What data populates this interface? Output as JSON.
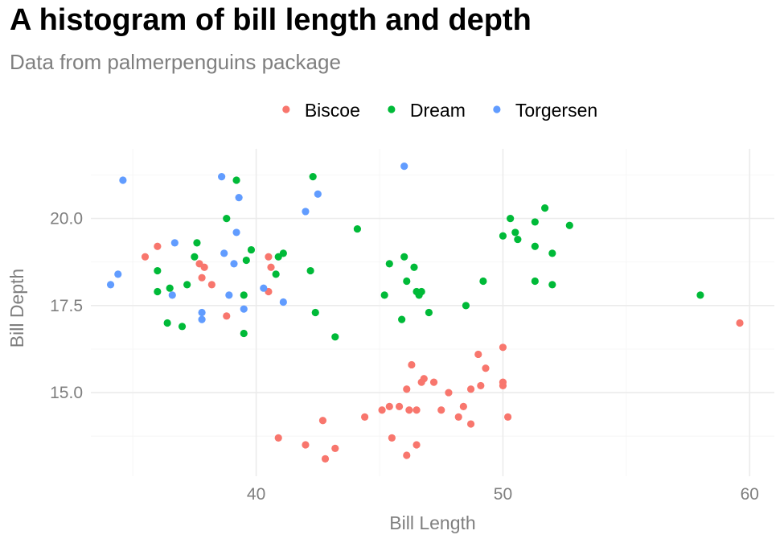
{
  "chart_data": {
    "type": "scatter",
    "title": "A histogram of bill length and depth",
    "subtitle": "Data from palmerpenguins package",
    "xlabel": "Bill Length",
    "ylabel": "Bill Depth",
    "xlim": [
      33.3,
      61.0
    ],
    "ylim": [
      12.6,
      22.0
    ],
    "x_ticks": [
      40,
      50,
      60
    ],
    "x_tick_labels": [
      "40",
      "50",
      "60"
    ],
    "y_ticks": [
      15.0,
      17.5,
      20.0
    ],
    "y_tick_labels": [
      "15.0",
      "17.5",
      "20.0"
    ],
    "grid": true,
    "legend_position": "top",
    "series": [
      {
        "name": "Biscoe",
        "color": "#F8766D",
        "points": [
          [
            35.5,
            18.9
          ],
          [
            36.0,
            19.2
          ],
          [
            37.7,
            18.7
          ],
          [
            37.8,
            18.3
          ],
          [
            37.9,
            18.6
          ],
          [
            38.2,
            18.1
          ],
          [
            38.8,
            17.2
          ],
          [
            40.5,
            18.9
          ],
          [
            40.6,
            18.6
          ],
          [
            40.5,
            17.9
          ],
          [
            40.9,
            13.7
          ],
          [
            42.0,
            13.5
          ],
          [
            42.7,
            14.2
          ],
          [
            42.8,
            13.1
          ],
          [
            43.2,
            13.4
          ],
          [
            44.4,
            14.3
          ],
          [
            45.1,
            14.5
          ],
          [
            45.4,
            14.6
          ],
          [
            45.5,
            13.7
          ],
          [
            45.8,
            14.6
          ],
          [
            46.1,
            15.1
          ],
          [
            46.1,
            13.2
          ],
          [
            46.2,
            14.5
          ],
          [
            46.3,
            15.8
          ],
          [
            46.5,
            14.5
          ],
          [
            46.5,
            13.5
          ],
          [
            46.7,
            15.3
          ],
          [
            46.8,
            15.4
          ],
          [
            47.2,
            15.3
          ],
          [
            47.5,
            14.5
          ],
          [
            47.8,
            15.0
          ],
          [
            48.2,
            14.3
          ],
          [
            48.4,
            14.6
          ],
          [
            48.7,
            15.1
          ],
          [
            48.7,
            14.1
          ],
          [
            49.0,
            16.1
          ],
          [
            49.1,
            15.2
          ],
          [
            49.3,
            15.7
          ],
          [
            50.0,
            16.3
          ],
          [
            50.0,
            15.3
          ],
          [
            50.0,
            15.2
          ],
          [
            50.2,
            14.3
          ],
          [
            59.6,
            17.0
          ]
        ]
      },
      {
        "name": "Dream",
        "color": "#00BA38",
        "points": [
          [
            36.0,
            17.9
          ],
          [
            36.0,
            18.5
          ],
          [
            36.4,
            17.0
          ],
          [
            36.5,
            18.0
          ],
          [
            37.0,
            16.9
          ],
          [
            37.2,
            18.1
          ],
          [
            37.5,
            18.9
          ],
          [
            37.6,
            19.3
          ],
          [
            38.8,
            20.0
          ],
          [
            39.2,
            21.1
          ],
          [
            39.5,
            17.8
          ],
          [
            39.5,
            16.7
          ],
          [
            39.6,
            18.8
          ],
          [
            39.8,
            19.1
          ],
          [
            40.8,
            18.4
          ],
          [
            40.9,
            18.9
          ],
          [
            41.1,
            19.0
          ],
          [
            42.2,
            18.5
          ],
          [
            42.3,
            21.2
          ],
          [
            42.4,
            17.3
          ],
          [
            43.2,
            16.6
          ],
          [
            44.1,
            19.7
          ],
          [
            45.2,
            17.8
          ],
          [
            45.4,
            18.7
          ],
          [
            45.9,
            17.1
          ],
          [
            46.0,
            18.9
          ],
          [
            46.1,
            18.2
          ],
          [
            46.4,
            18.6
          ],
          [
            46.5,
            17.9
          ],
          [
            46.6,
            17.8
          ],
          [
            46.7,
            17.9
          ],
          [
            47.0,
            17.3
          ],
          [
            48.5,
            17.5
          ],
          [
            49.2,
            18.2
          ],
          [
            50.0,
            19.5
          ],
          [
            50.3,
            20.0
          ],
          [
            50.5,
            19.6
          ],
          [
            50.6,
            19.4
          ],
          [
            51.3,
            19.9
          ],
          [
            51.3,
            19.2
          ],
          [
            51.3,
            18.2
          ],
          [
            51.7,
            20.3
          ],
          [
            52.0,
            19.0
          ],
          [
            52.0,
            18.1
          ],
          [
            52.7,
            19.8
          ],
          [
            58.0,
            17.8
          ]
        ]
      },
      {
        "name": "Torgersen",
        "color": "#619CFF",
        "points": [
          [
            34.1,
            18.1
          ],
          [
            34.4,
            18.4
          ],
          [
            34.6,
            21.1
          ],
          [
            36.6,
            17.8
          ],
          [
            36.7,
            19.3
          ],
          [
            37.8,
            17.3
          ],
          [
            37.8,
            17.1
          ],
          [
            38.6,
            21.2
          ],
          [
            38.7,
            19.0
          ],
          [
            38.9,
            17.8
          ],
          [
            39.1,
            18.7
          ],
          [
            39.2,
            19.6
          ],
          [
            39.3,
            20.6
          ],
          [
            39.5,
            17.4
          ],
          [
            40.3,
            18.0
          ],
          [
            41.1,
            17.6
          ],
          [
            42.0,
            20.2
          ],
          [
            42.5,
            20.7
          ],
          [
            46.0,
            21.5
          ]
        ]
      }
    ]
  }
}
